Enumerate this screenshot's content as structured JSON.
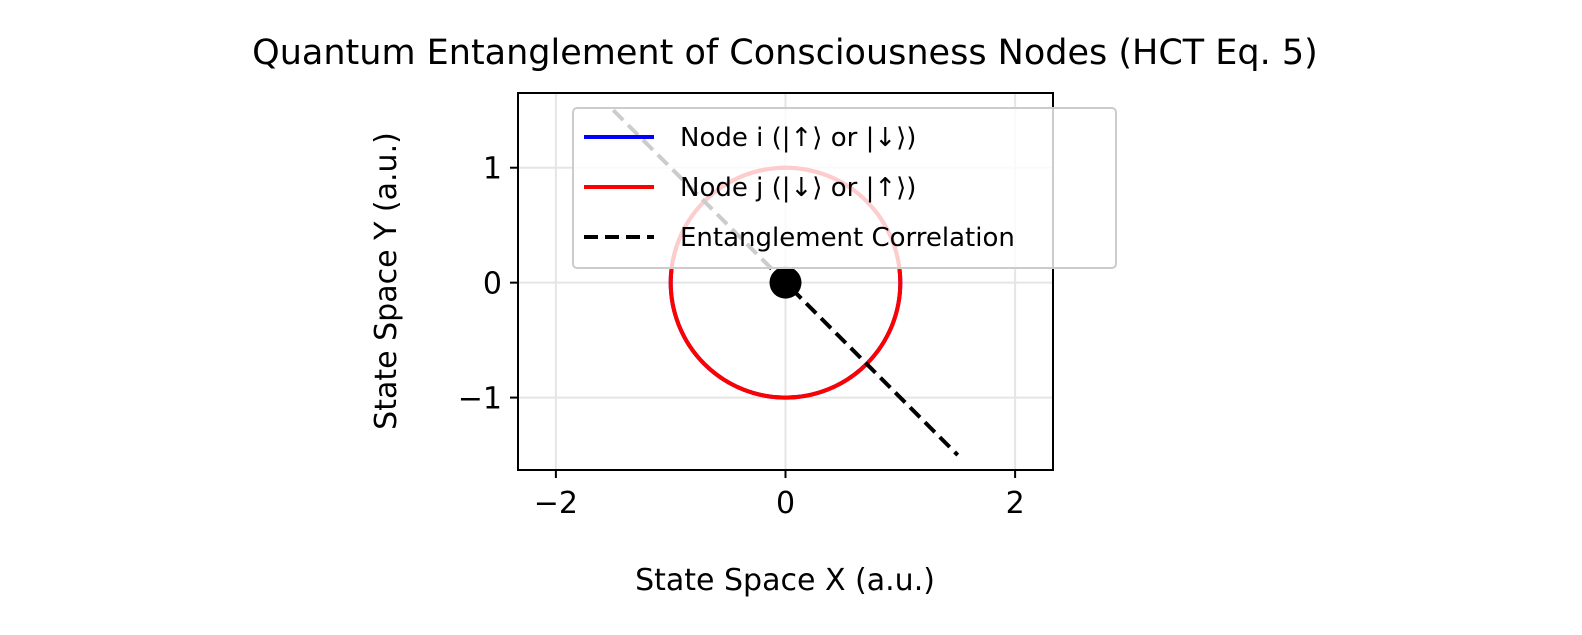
{
  "chart_data": {
    "type": "line",
    "title": "Quantum Entanglement of Consciousness Nodes (HCT Eq. 5)",
    "xlabel": "State Space X (a.u.)",
    "ylabel": "State Space Y (a.u.)",
    "xlim": [
      -2.33,
      2.33
    ],
    "ylim": [
      -1.63,
      1.65
    ],
    "xticks": [
      -2,
      0,
      2
    ],
    "xtick_labels": [
      "−2",
      "0",
      "2"
    ],
    "yticks": [
      -1,
      0,
      1
    ],
    "ytick_labels": [
      "−1",
      "0",
      "1"
    ],
    "grid": true,
    "legend_position": "upper right",
    "series": [
      {
        "name": "Node i (|↑⟩ or |↓⟩)",
        "kind": "circle",
        "center": [
          0,
          0
        ],
        "radius": 1,
        "color": "#0000ff",
        "linestyle": "solid"
      },
      {
        "name": "Node j (|↓⟩ or |↑⟩)",
        "kind": "circle",
        "center": [
          0,
          0
        ],
        "radius": 1,
        "color": "#ff0000",
        "linestyle": "solid"
      },
      {
        "name": "Entanglement Correlation",
        "kind": "line",
        "x": [
          -1.5,
          1.5
        ],
        "y": [
          1.5,
          -1.5
        ],
        "color": "#000000",
        "linestyle": "dashed"
      }
    ],
    "markers": [
      {
        "x": 0,
        "y": 0,
        "color": "#000000"
      }
    ]
  }
}
